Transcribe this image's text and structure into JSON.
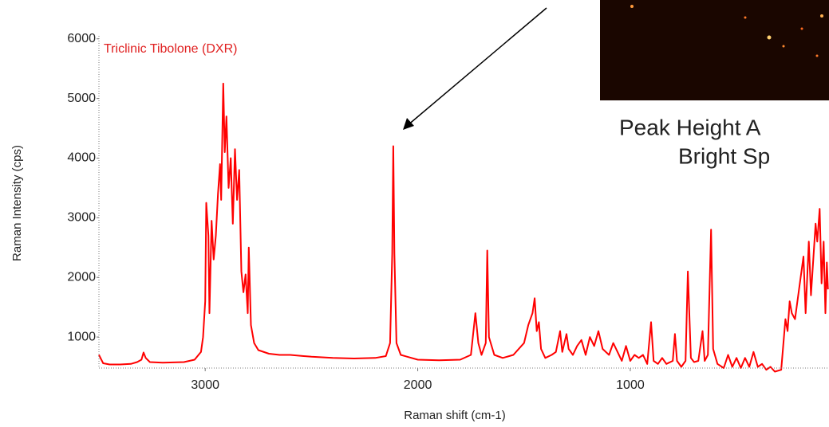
{
  "chart_data": {
    "type": "line",
    "title": "Triclinic Tibolone (DXR)",
    "x_label": "Raman shift (cm-1)",
    "y_label": "Raman Intensity (cps)",
    "annotations": [
      "Peak Height A",
      "Bright Sp"
    ],
    "xlim": [
      3500,
      65
    ],
    "xticks": [
      3000,
      2000,
      1000
    ],
    "ylim": [
      480,
      6050
    ],
    "yticks": [
      1000,
      2000,
      3000,
      4000,
      5000,
      6000
    ],
    "series": [
      {
        "name": "Triclinic Tibolone (DXR)",
        "color": "#ff0000",
        "x": [
          3500,
          3480,
          3450,
          3400,
          3350,
          3320,
          3300,
          3290,
          3280,
          3260,
          3200,
          3100,
          3050,
          3020,
          3010,
          3000,
          2995,
          2985,
          2980,
          2970,
          2960,
          2950,
          2940,
          2930,
          2925,
          2915,
          2908,
          2900,
          2890,
          2880,
          2870,
          2860,
          2850,
          2840,
          2830,
          2820,
          2810,
          2800,
          2795,
          2785,
          2770,
          2750,
          2700,
          2650,
          2600,
          2500,
          2400,
          2300,
          2200,
          2150,
          2130,
          2120,
          2115,
          2110,
          2100,
          2080,
          2000,
          1900,
          1800,
          1750,
          1729,
          1715,
          1700,
          1680,
          1673,
          1665,
          1640,
          1600,
          1550,
          1500,
          1480,
          1460,
          1450,
          1440,
          1430,
          1420,
          1400,
          1370,
          1350,
          1330,
          1320,
          1300,
          1290,
          1270,
          1250,
          1230,
          1210,
          1190,
          1170,
          1150,
          1130,
          1100,
          1080,
          1060,
          1040,
          1020,
          1000,
          980,
          960,
          940,
          920,
          902,
          890,
          870,
          850,
          830,
          800,
          790,
          780,
          760,
          740,
          729,
          715,
          700,
          680,
          660,
          650,
          635,
          620,
          610,
          590,
          560,
          540,
          520,
          500,
          480,
          460,
          440,
          420,
          400,
          380,
          360,
          340,
          320,
          290,
          270,
          260,
          250,
          240,
          225,
          185,
          175,
          160,
          150,
          128,
          120,
          109,
          100,
          90,
          82,
          75,
          70
        ],
        "values": [
          700,
          560,
          540,
          540,
          550,
          580,
          620,
          740,
          650,
          580,
          570,
          580,
          620,
          750,
          1000,
          1600,
          3250,
          2700,
          1400,
          2950,
          2300,
          2700,
          3400,
          3900,
          3300,
          5250,
          4100,
          4700,
          3500,
          4000,
          2900,
          4150,
          3300,
          3800,
          2100,
          1750,
          2050,
          1400,
          2500,
          1200,
          900,
          780,
          720,
          700,
          700,
          670,
          650,
          640,
          650,
          680,
          900,
          2400,
          4200,
          2400,
          900,
          700,
          620,
          610,
          620,
          700,
          1400,
          900,
          700,
          900,
          2450,
          1000,
          700,
          650,
          700,
          900,
          1200,
          1400,
          1650,
          1100,
          1250,
          800,
          650,
          700,
          750,
          1100,
          750,
          1050,
          800,
          700,
          850,
          950,
          700,
          1000,
          850,
          1100,
          800,
          700,
          900,
          750,
          600,
          850,
          600,
          700,
          650,
          700,
          550,
          1250,
          600,
          550,
          650,
          550,
          600,
          1050,
          600,
          500,
          600,
          2100,
          650,
          580,
          600,
          1100,
          600,
          700,
          2800,
          800,
          550,
          480,
          700,
          500,
          650,
          480,
          650,
          500,
          750,
          500,
          550,
          450,
          500,
          420,
          450,
          1300,
          1100,
          1600,
          1400,
          1300,
          2350,
          1400,
          2600,
          1700,
          2900,
          2600,
          3150,
          1900,
          2600,
          1400,
          2250,
          1800
        ]
      }
    ]
  }
}
